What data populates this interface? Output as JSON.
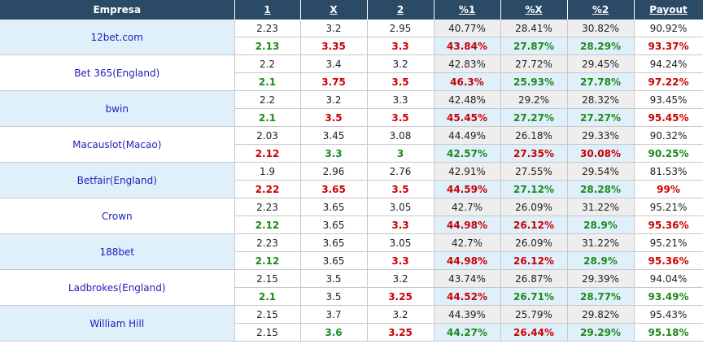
{
  "headers": [
    "Empresa",
    "1",
    "X",
    "2",
    "%1",
    "%X",
    "%2",
    "Payout"
  ],
  "rows": [
    {
      "company": "12bet.com",
      "opening": {
        "values": [
          "2.23",
          "3.2",
          "2.95",
          "40.77%",
          "28.41%",
          "30.82%",
          "90.92%"
        ],
        "colors": [
          "",
          "",
          "",
          "",
          "",
          "",
          ""
        ]
      },
      "current": {
        "values": [
          "2.13",
          "3.35",
          "3.3",
          "43.84%",
          "27.87%",
          "28.29%",
          "93.37%"
        ],
        "colors": [
          "green",
          "red",
          "red",
          "red",
          "green",
          "green",
          "red"
        ]
      }
    },
    {
      "company": "Bet 365(England)",
      "opening": {
        "values": [
          "2.2",
          "3.4",
          "3.2",
          "42.83%",
          "27.72%",
          "29.45%",
          "94.24%"
        ],
        "colors": [
          "",
          "",
          "",
          "",
          "",
          "",
          ""
        ]
      },
      "current": {
        "values": [
          "2.1",
          "3.75",
          "3.5",
          "46.3%",
          "25.93%",
          "27.78%",
          "97.22%"
        ],
        "colors": [
          "green",
          "red",
          "red",
          "red",
          "green",
          "green",
          "red"
        ]
      }
    },
    {
      "company": "bwin",
      "opening": {
        "values": [
          "2.2",
          "3.2",
          "3.3",
          "42.48%",
          "29.2%",
          "28.32%",
          "93.45%"
        ],
        "colors": [
          "",
          "",
          "",
          "",
          "",
          "",
          ""
        ]
      },
      "current": {
        "values": [
          "2.1",
          "3.5",
          "3.5",
          "45.45%",
          "27.27%",
          "27.27%",
          "95.45%"
        ],
        "colors": [
          "green",
          "red",
          "red",
          "red",
          "green",
          "green",
          "red"
        ]
      }
    },
    {
      "company": "Macauslot(Macao)",
      "opening": {
        "values": [
          "2.03",
          "3.45",
          "3.08",
          "44.49%",
          "26.18%",
          "29.33%",
          "90.32%"
        ],
        "colors": [
          "",
          "",
          "",
          "",
          "",
          "",
          ""
        ]
      },
      "current": {
        "values": [
          "2.12",
          "3.3",
          "3",
          "42.57%",
          "27.35%",
          "30.08%",
          "90.25%"
        ],
        "colors": [
          "red",
          "green",
          "green",
          "green",
          "red",
          "red",
          "green"
        ]
      }
    },
    {
      "company": "Betfair(England)",
      "opening": {
        "values": [
          "1.9",
          "2.96",
          "2.76",
          "42.91%",
          "27.55%",
          "29.54%",
          "81.53%"
        ],
        "colors": [
          "",
          "",
          "",
          "",
          "",
          "",
          ""
        ]
      },
      "current": {
        "values": [
          "2.22",
          "3.65",
          "3.5",
          "44.59%",
          "27.12%",
          "28.28%",
          "99%"
        ],
        "colors": [
          "red",
          "red",
          "red",
          "red",
          "green",
          "green",
          "red"
        ]
      }
    },
    {
      "company": "Crown",
      "opening": {
        "values": [
          "2.23",
          "3.65",
          "3.05",
          "42.7%",
          "26.09%",
          "31.22%",
          "95.21%"
        ],
        "colors": [
          "",
          "",
          "",
          "",
          "",
          "",
          ""
        ]
      },
      "current": {
        "values": [
          "2.12",
          "3.65",
          "3.3",
          "44.98%",
          "26.12%",
          "28.9%",
          "95.36%"
        ],
        "colors": [
          "green",
          "",
          "red",
          "red",
          "red",
          "green",
          "red"
        ]
      }
    },
    {
      "company": "188bet",
      "opening": {
        "values": [
          "2.23",
          "3.65",
          "3.05",
          "42.7%",
          "26.09%",
          "31.22%",
          "95.21%"
        ],
        "colors": [
          "",
          "",
          "",
          "",
          "",
          "",
          ""
        ]
      },
      "current": {
        "values": [
          "2.12",
          "3.65",
          "3.3",
          "44.98%",
          "26.12%",
          "28.9%",
          "95.36%"
        ],
        "colors": [
          "green",
          "",
          "red",
          "red",
          "red",
          "green",
          "red"
        ]
      }
    },
    {
      "company": "Ladbrokes(England)",
      "opening": {
        "values": [
          "2.15",
          "3.5",
          "3.2",
          "43.74%",
          "26.87%",
          "29.39%",
          "94.04%"
        ],
        "colors": [
          "",
          "",
          "",
          "",
          "",
          "",
          ""
        ]
      },
      "current": {
        "values": [
          "2.1",
          "3.5",
          "3.25",
          "44.52%",
          "26.71%",
          "28.77%",
          "93.49%"
        ],
        "colors": [
          "green",
          "",
          "red",
          "red",
          "green",
          "green",
          "green"
        ]
      }
    },
    {
      "company": "William Hill",
      "opening": {
        "values": [
          "2.15",
          "3.7",
          "3.2",
          "44.39%",
          "25.79%",
          "29.82%",
          "95.43%"
        ],
        "colors": [
          "",
          "",
          "",
          "",
          "",
          "",
          ""
        ]
      },
      "current": {
        "values": [
          "2.15",
          "3.6",
          "3.25",
          "44.27%",
          "26.44%",
          "29.29%",
          "95.18%"
        ],
        "colors": [
          "",
          "green",
          "red",
          "green",
          "red",
          "green",
          "green"
        ]
      }
    }
  ]
}
